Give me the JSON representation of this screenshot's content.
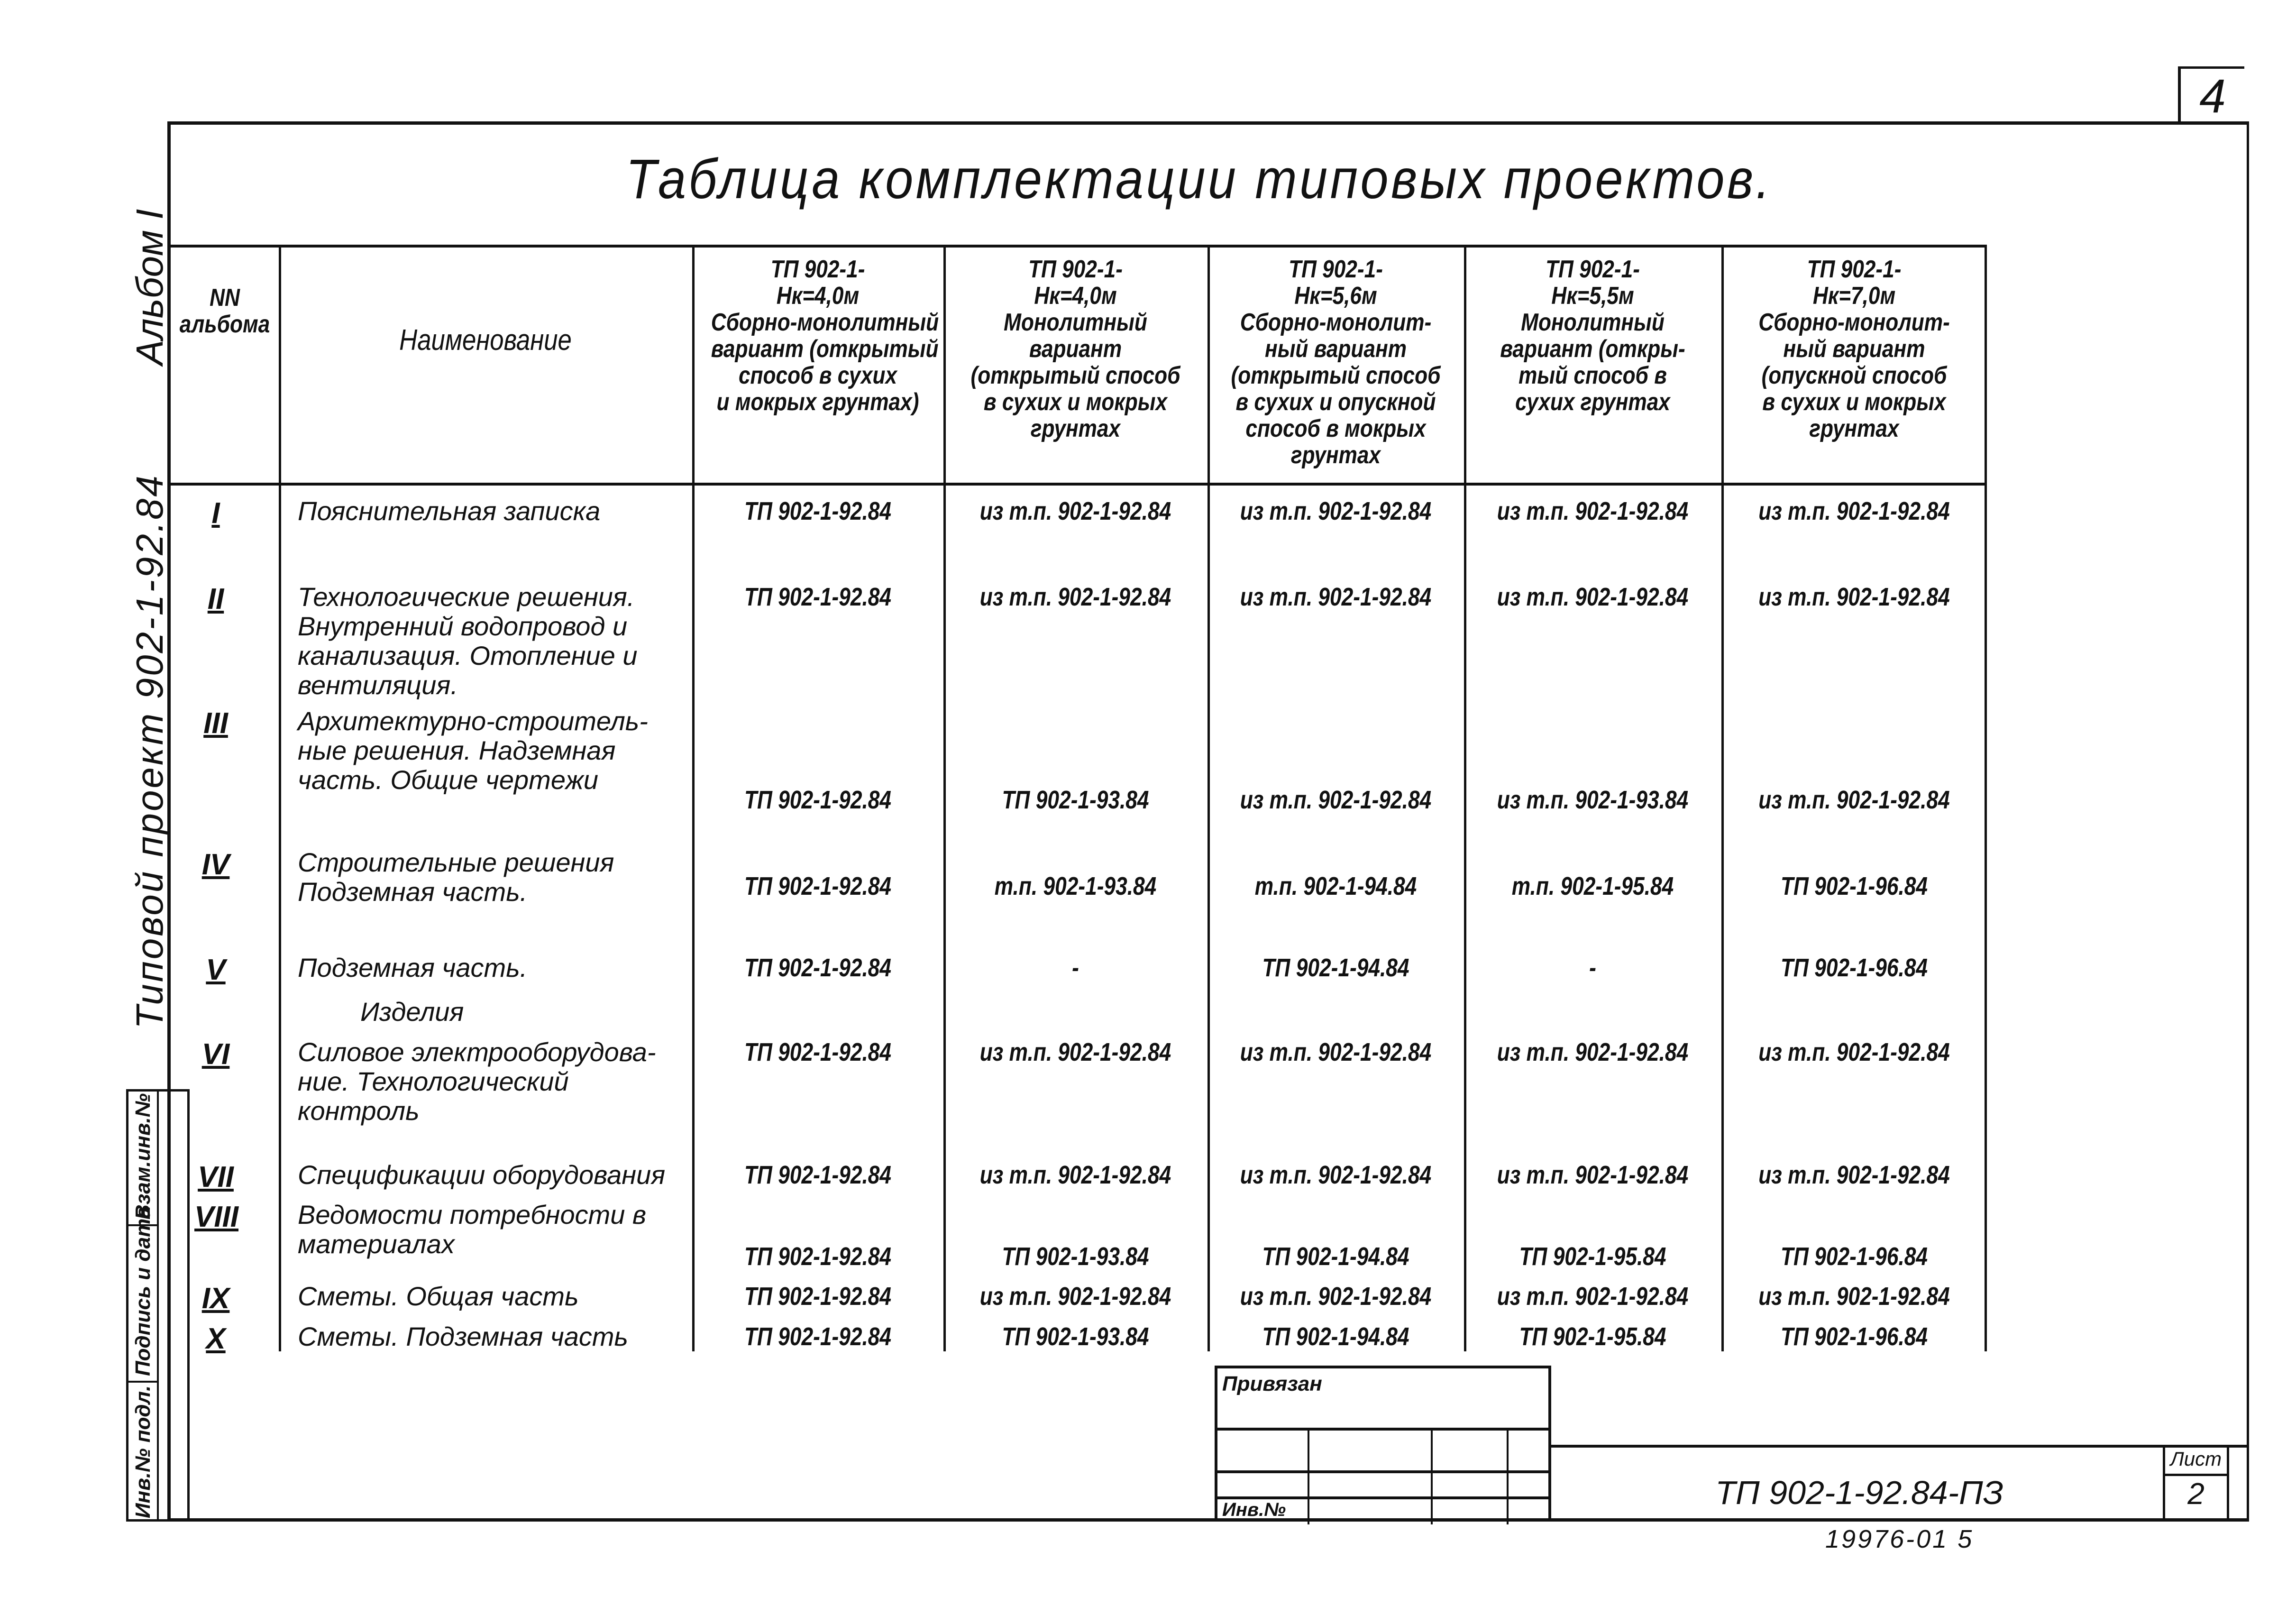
{
  "sheet_number": "4",
  "title": "Таблица комплектации типовых проектов.",
  "side_labels": {
    "album": "Альбом I",
    "project": "Типовой проект 902-1-92.84"
  },
  "stamp_strip": [
    "Инв.№ подл.",
    "Подпись и дата",
    "Взам.инв.№"
  ],
  "table": {
    "headers": [
      {
        "lines": [
          "NN",
          "альбома"
        ]
      },
      {
        "lines": [
          "Наименование"
        ]
      },
      {
        "lines": [
          "ТП 902-1-",
          "Нк=4,0м",
          "Сборно-монолитный",
          "вариант (открытый",
          "способ в сухих",
          "и мокрых грунтах)"
        ]
      },
      {
        "lines": [
          "ТП 902-1-",
          "Нк=4,0м",
          "Монолитный",
          "вариант",
          "(открытый способ",
          "в сухих и мокрых",
          "грунтах"
        ]
      },
      {
        "lines": [
          "ТП 902-1-",
          "Нк=5,6м",
          "Сборно-монолит-",
          "ный вариант",
          "(открытый способ",
          "в сухих и опускной",
          "способ в мокрых",
          "грунтах"
        ]
      },
      {
        "lines": [
          "ТП 902-1-",
          "Нк=5,5м",
          "Монолитный",
          "вариант (откры-",
          "тый способ в",
          "сухих грунтах"
        ]
      },
      {
        "lines": [
          "ТП 902-1-",
          "Нк=7,0м",
          "Сборно-монолит-",
          "ный вариант",
          "(опускной способ",
          "в сухих и мокрых",
          "грунтах"
        ]
      }
    ],
    "rows": [
      {
        "num": "I",
        "name": "Пояснительная записка",
        "values": [
          "ТП 902-1-92.84",
          "из т.п. 902-1-92.84",
          "из т.п. 902-1-92.84",
          "из т.п. 902-1-92.84",
          "из т.п. 902-1-92.84"
        ]
      },
      {
        "num": "II",
        "name": "Технологические решения. Внутренний водопровод и канализация. Отопление и вентиляция.",
        "values": [
          "ТП 902-1-92.84",
          "из т.п. 902-1-92.84",
          "из т.п. 902-1-92.84",
          "из т.п. 902-1-92.84",
          "из т.п. 902-1-92.84"
        ]
      },
      {
        "num": "III",
        "name": "Архитектурно-строитель-ные решения. Надземная часть. Общие чертежи",
        "values": [
          "ТП 902-1-92.84",
          "ТП 902-1-93.84",
          "из т.п. 902-1-92.84",
          "из т.п. 902-1-93.84",
          "из т.п. 902-1-92.84"
        ]
      },
      {
        "num": "IV",
        "name": "Строительные решения Подземная часть.",
        "values": [
          "ТП 902-1-92.84",
          "т.п. 902-1-93.84",
          "т.п. 902-1-94.84",
          "т.п. 902-1-95.84",
          "ТП 902-1-96.84"
        ]
      },
      {
        "num": "V",
        "name": "Подземная часть.",
        "values": [
          "ТП 902-1-92.84",
          "-",
          "ТП 902-1-94.84",
          "-",
          "ТП 902-1-96.84"
        ]
      },
      {
        "num": "",
        "name": "Изделия",
        "values": [
          "",
          "",
          "",
          "",
          ""
        ]
      },
      {
        "num": "VI",
        "name": "Силовое электрооборудова-ние. Технологический контроль",
        "values": [
          "ТП 902-1-92.84",
          "из т.п. 902-1-92.84",
          "из т.п. 902-1-92.84",
          "из т.п. 902-1-92.84",
          "из т.п. 902-1-92.84"
        ]
      },
      {
        "num": "VII",
        "name": "Спецификации оборудования",
        "values": [
          "ТП 902-1-92.84",
          "из т.п. 902-1-92.84",
          "из т.п. 902-1-92.84",
          "из т.п. 902-1-92.84",
          "из т.п. 902-1-92.84"
        ]
      },
      {
        "num": "VIII",
        "name": "Ведомости потребности в материалах",
        "values": [
          "ТП 902-1-92.84",
          "ТП 902-1-93.84",
          "ТП 902-1-94.84",
          "ТП 902-1-95.84",
          "ТП 902-1-96.84"
        ]
      },
      {
        "num": "IX",
        "name": "Сметы. Общая часть",
        "values": [
          "ТП 902-1-92.84",
          "из т.п. 902-1-92.84",
          "из т.п. 902-1-92.84",
          "из т.п. 902-1-92.84",
          "из т.п. 902-1-92.84"
        ]
      },
      {
        "num": "X",
        "name": "Сметы. Подземная часть",
        "values": [
          "ТП 902-1-92.84",
          "ТП 902-1-93.84",
          "ТП 902-1-94.84",
          "ТП 902-1-95.84",
          "ТП 902-1-96.84"
        ]
      }
    ]
  },
  "stamp": {
    "attached_label": "Привязан",
    "inv_label": "Инв.№"
  },
  "title_block": {
    "doc_code": "ТП 902-1-92.84-ПЗ",
    "sheet_label": "Лист",
    "sheet_value": "2"
  },
  "footer_code": "19976-01 5"
}
